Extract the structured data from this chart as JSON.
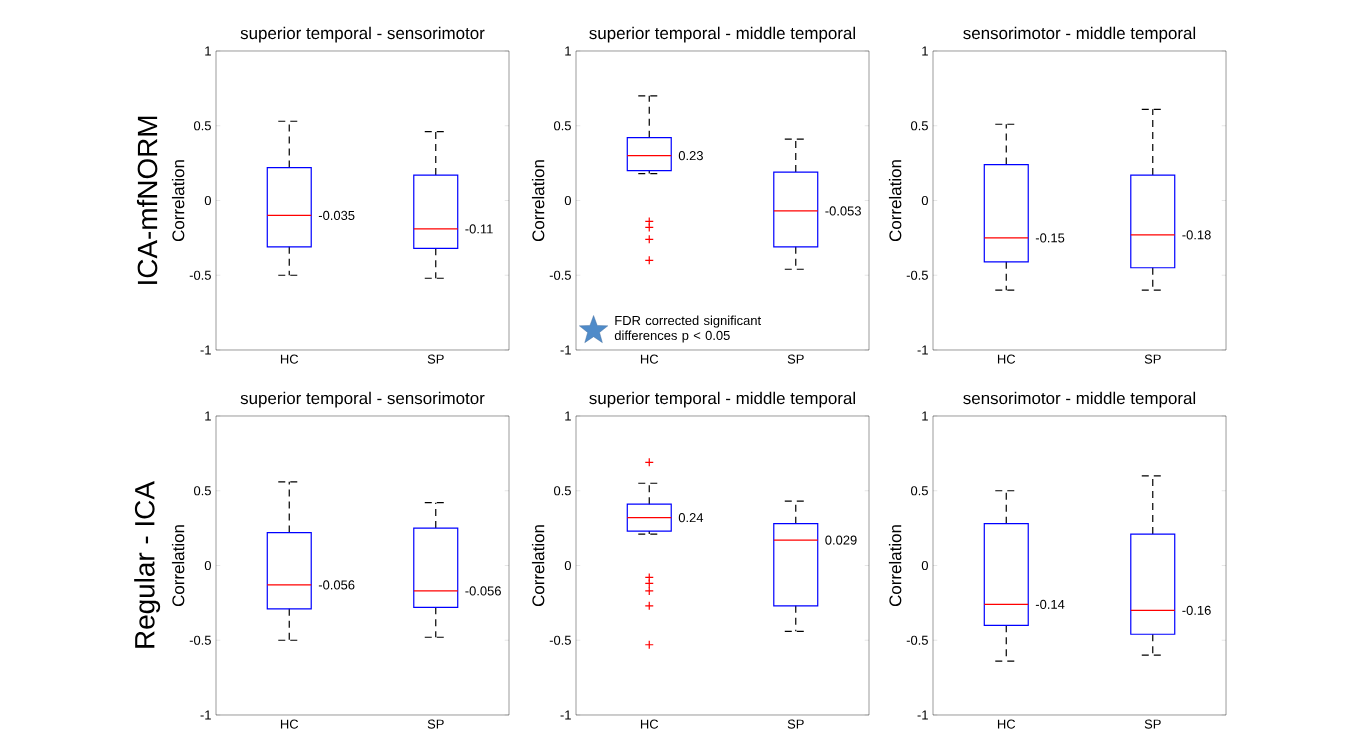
{
  "chart_data": [
    {
      "type": "box",
      "title": "superior temporal - sensorimotor",
      "ylabel": "Correlation",
      "categories": [
        "HC",
        "SP"
      ],
      "color": "#0000ff",
      "ylim": [
        -1,
        1
      ],
      "yticks": [
        -1,
        -0.5,
        0,
        0.5,
        1
      ],
      "boxes": [
        {
          "low": -0.5,
          "q1": -0.31,
          "median": -0.1,
          "q3": 0.22,
          "high": 0.53
        },
        {
          "low": -0.52,
          "q1": -0.32,
          "median": -0.19,
          "q3": 0.17,
          "high": 0.46
        }
      ],
      "annotations": [
        "ICA-mfNORM",
        "-0.035",
        "-0.11"
      ]
    },
    {
      "type": "box",
      "title": "superior temporal - middle temporal",
      "ylabel": "Correlation",
      "categories": [
        "HC",
        "SP"
      ],
      "color": "#0000ff",
      "ylim": [
        -1,
        1
      ],
      "yticks": [
        -1,
        -0.5,
        0,
        0.5,
        1
      ],
      "marker": "cross",
      "boxes": [
        {
          "low": 0.18,
          "q1": 0.2,
          "median": 0.3,
          "q3": 0.42,
          "high": 0.7,
          "outliers": [
            -0.14,
            -0.18,
            -0.26,
            -0.4
          ]
        },
        {
          "low": -0.46,
          "q1": -0.31,
          "median": -0.07,
          "q3": 0.19,
          "high": 0.41
        }
      ],
      "annotations": [
        "FDR corrected significant differences p < 0.05",
        "0.23",
        "-0.053"
      ]
    },
    {
      "type": "box",
      "title": "sensorimotor - middle temporal",
      "ylabel": "Correlation",
      "categories": [
        "HC",
        "SP"
      ],
      "color": "#0000ff",
      "ylim": [
        -1,
        1
      ],
      "yticks": [
        -1,
        -0.5,
        0,
        0.5,
        1
      ],
      "boxes": [
        {
          "low": -0.6,
          "q1": -0.41,
          "median": -0.25,
          "q3": 0.24,
          "high": 0.51
        },
        {
          "low": -0.6,
          "q1": -0.45,
          "median": -0.23,
          "q3": 0.17,
          "high": 0.61
        }
      ],
      "annotations": [
        "-0.15",
        "-0.18"
      ]
    },
    {
      "type": "box",
      "title": "superior temporal - sensorimotor",
      "ylabel": "Correlation",
      "categories": [
        "HC",
        "SP"
      ],
      "color": "#0000ff",
      "ylim": [
        -1,
        1
      ],
      "yticks": [
        -1,
        -0.5,
        0,
        0.5,
        1
      ],
      "boxes": [
        {
          "low": -0.5,
          "q1": -0.29,
          "median": -0.13,
          "q3": 0.22,
          "high": 0.56
        },
        {
          "low": -0.48,
          "q1": -0.28,
          "median": -0.17,
          "q3": 0.25,
          "high": 0.42
        }
      ],
      "annotations": [
        "Regular - ICA",
        "-0.056",
        "-0.056"
      ]
    },
    {
      "type": "box",
      "title": "superior temporal - middle temporal",
      "ylabel": "Correlation",
      "categories": [
        "HC",
        "SP"
      ],
      "color": "#0000ff",
      "ylim": [
        -1,
        1
      ],
      "yticks": [
        -1,
        -0.5,
        0,
        0.5,
        1
      ],
      "marker": "cross",
      "boxes": [
        {
          "low": 0.21,
          "q1": 0.23,
          "median": 0.32,
          "q3": 0.41,
          "high": 0.55,
          "outliers": [
            0.69,
            -0.08,
            -0.12,
            -0.17,
            -0.27,
            -0.53
          ]
        },
        {
          "low": -0.44,
          "q1": -0.27,
          "median": 0.17,
          "q3": 0.28,
          "high": 0.43
        }
      ],
      "annotations": [
        "0.24",
        "0.029"
      ]
    },
    {
      "type": "box",
      "title": "sensorimotor - middle temporal",
      "ylabel": "Correlation",
      "categories": [
        "HC",
        "SP"
      ],
      "color": "#0000ff",
      "ylim": [
        -1,
        1
      ],
      "yticks": [
        -1,
        -0.5,
        0,
        0.5,
        1
      ],
      "boxes": [
        {
          "low": -0.64,
          "q1": -0.4,
          "median": -0.26,
          "q3": 0.28,
          "high": 0.5
        },
        {
          "low": -0.6,
          "q1": -0.46,
          "median": -0.3,
          "q3": 0.21,
          "high": 0.6
        }
      ],
      "annotations": [
        "-0.14",
        "-0.16"
      ]
    }
  ]
}
